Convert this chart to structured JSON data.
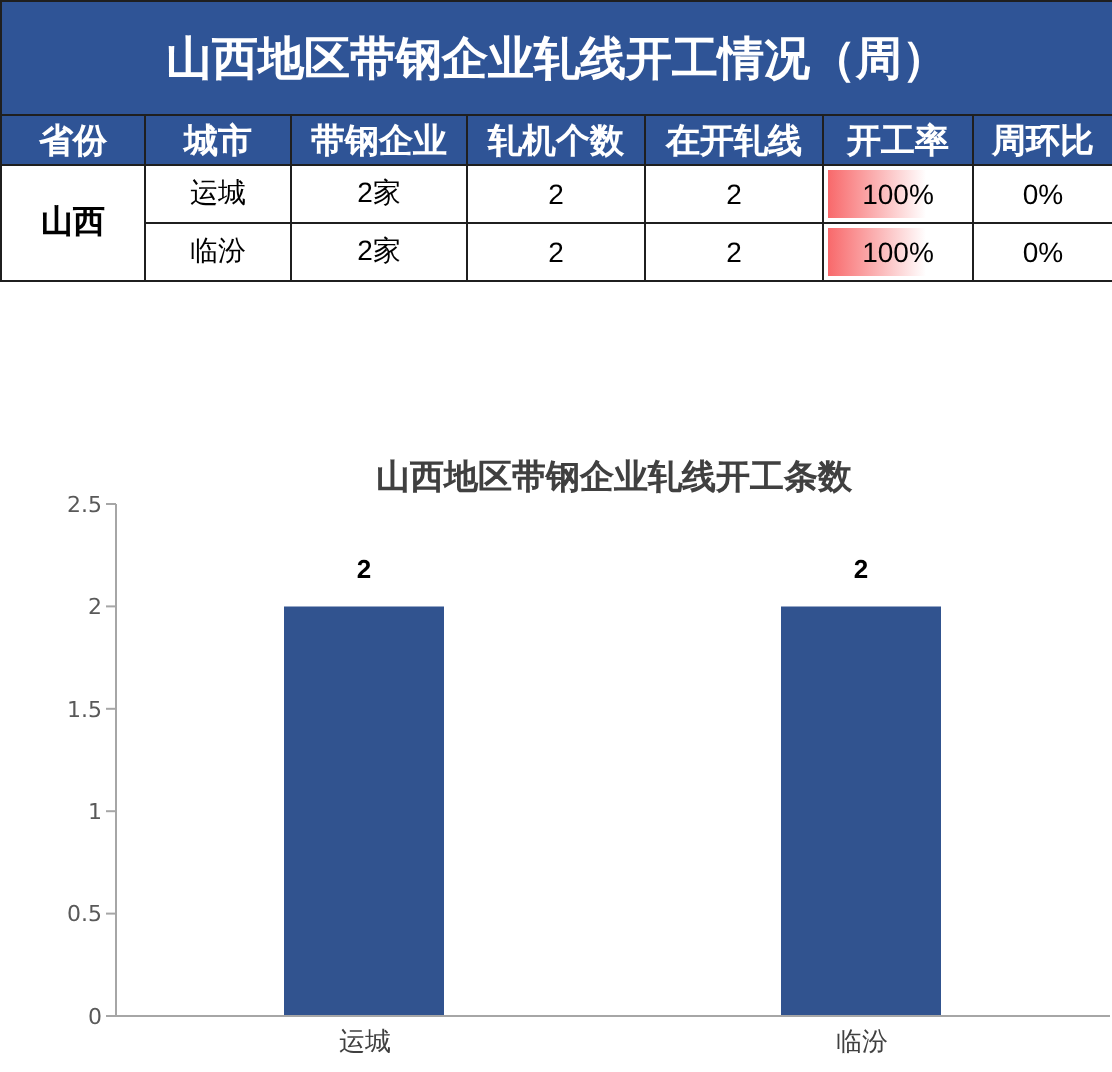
{
  "chart_data": [
    {
      "type": "other",
      "title": "山西地区带钢企业轧线开工情况（周）",
      "categories": [
        "省份",
        "城市",
        "带钢企业",
        "轧机个数",
        "在开轧线",
        "开工率",
        "周环比"
      ],
      "cell_labels": [
        [
          "山西",
          "运城",
          "2家",
          "2",
          "2",
          "100%",
          "0%"
        ],
        [
          null,
          "临汾",
          "2家",
          "2",
          "2",
          "100%",
          "0%"
        ]
      ]
    },
    {
      "type": "bar",
      "title": "山西地区带钢企业轧线开工条数",
      "categories": [
        "运城",
        "临汾"
      ],
      "values": [
        2,
        2
      ],
      "color": "#31538f",
      "ylim": [
        0,
        2.5
      ],
      "yticks": [
        0,
        0.5,
        1,
        1.5,
        2,
        2.5
      ],
      "data_labels": true
    }
  ]
}
